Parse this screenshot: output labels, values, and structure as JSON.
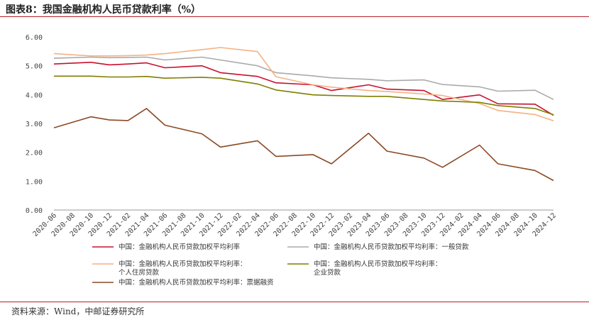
{
  "header": {
    "title": "图表8：我国金融机构人民币贷款利率（%）"
  },
  "footer": {
    "source": "资料来源：Wind，中邮证券研究所"
  },
  "chart_data": {
    "type": "line",
    "title": "",
    "xlabel": "",
    "ylabel": "",
    "ylim": [
      0,
      6
    ],
    "yticks": [
      "0.00",
      "1.00",
      "2.00",
      "3.00",
      "4.00",
      "5.00",
      "6.00"
    ],
    "x": [
      "2020-06",
      "2020-08",
      "2020-10",
      "2020-12",
      "2021-02",
      "2021-04",
      "2021-06",
      "2021-08",
      "2021-10",
      "2021-12",
      "2022-02",
      "2022-04",
      "2022-06",
      "2022-08",
      "2022-10",
      "2022-12",
      "2023-02",
      "2023-04",
      "2023-06",
      "2023-08",
      "2023-10",
      "2023-12",
      "2024-02",
      "2024-04",
      "2024-06",
      "2024-08",
      "2024-10",
      "2024-12"
    ],
    "grid": false,
    "legend_position": "bottom",
    "series": [
      {
        "name": "中国：金融机构人民币贷款加权平均利率",
        "legend_lines": [
          "中国：金融机构人民币贷款加权平均利率"
        ],
        "color": "#c8102e",
        "points": [
          [
            0,
            5.06
          ],
          [
            2,
            5.12
          ],
          [
            3,
            5.03
          ],
          [
            4,
            5.06
          ],
          [
            5,
            5.1
          ],
          [
            6,
            4.93
          ],
          [
            8,
            5.0
          ],
          [
            9,
            4.76
          ],
          [
            11,
            4.63
          ],
          [
            12,
            4.41
          ],
          [
            14,
            4.34
          ],
          [
            15,
            4.14
          ],
          [
            17,
            4.34
          ],
          [
            18,
            4.19
          ],
          [
            20,
            4.14
          ],
          [
            21,
            3.83
          ],
          [
            23,
            3.99
          ],
          [
            24,
            3.68
          ],
          [
            26,
            3.67
          ],
          [
            27,
            3.28
          ]
        ]
      },
      {
        "name": "中国：金融机构人民币贷款加权平均利率：一般贷款",
        "legend_lines": [
          "中国：金融机构人民币贷款加权平均利率：一般贷款"
        ],
        "color": "#aaaaaa",
        "points": [
          [
            0,
            5.26
          ],
          [
            2,
            5.3
          ],
          [
            3,
            5.28
          ],
          [
            4,
            5.29
          ],
          [
            5,
            5.3
          ],
          [
            6,
            5.2
          ],
          [
            8,
            5.3
          ],
          [
            9,
            5.2
          ],
          [
            11,
            5.0
          ],
          [
            12,
            4.76
          ],
          [
            14,
            4.65
          ],
          [
            15,
            4.58
          ],
          [
            17,
            4.53
          ],
          [
            18,
            4.48
          ],
          [
            20,
            4.51
          ],
          [
            21,
            4.35
          ],
          [
            23,
            4.27
          ],
          [
            24,
            4.12
          ],
          [
            26,
            4.15
          ],
          [
            27,
            3.83
          ]
        ]
      },
      {
        "name": "中国：金融机构人民币贷款加权平均利率：个人住房贷款",
        "legend_lines": [
          "中国：金融机构人民币贷款加权平均利率：",
          "个人住房贷款"
        ],
        "color": "#f4b183",
        "points": [
          [
            0,
            5.42
          ],
          [
            2,
            5.34
          ],
          [
            3,
            5.34
          ],
          [
            4,
            5.35
          ],
          [
            5,
            5.37
          ],
          [
            6,
            5.42
          ],
          [
            8,
            5.56
          ],
          [
            9,
            5.63
          ],
          [
            11,
            5.49
          ],
          [
            12,
            4.62
          ],
          [
            14,
            4.34
          ],
          [
            15,
            4.26
          ],
          [
            17,
            4.14
          ],
          [
            18,
            4.11
          ],
          [
            20,
            4.02
          ],
          [
            21,
            3.97
          ],
          [
            23,
            3.69
          ],
          [
            24,
            3.45
          ],
          [
            26,
            3.31
          ],
          [
            27,
            3.09
          ]
        ]
      },
      {
        "name": "中国：金融机构人民币贷款加权平均利率：企业贷款",
        "legend_lines": [
          "中国：金融机构人民币贷款加权平均利率：",
          "企业贷款"
        ],
        "color": "#7f7f00",
        "points": [
          [
            0,
            4.64
          ],
          [
            2,
            4.64
          ],
          [
            3,
            4.61
          ],
          [
            4,
            4.61
          ],
          [
            5,
            4.63
          ],
          [
            6,
            4.57
          ],
          [
            8,
            4.6
          ],
          [
            9,
            4.57
          ],
          [
            11,
            4.37
          ],
          [
            12,
            4.16
          ],
          [
            14,
            3.99
          ],
          [
            15,
            3.97
          ],
          [
            17,
            3.94
          ],
          [
            18,
            3.94
          ],
          [
            20,
            3.83
          ],
          [
            21,
            3.78
          ],
          [
            23,
            3.73
          ],
          [
            24,
            3.62
          ],
          [
            26,
            3.52
          ],
          [
            27,
            3.3
          ]
        ]
      },
      {
        "name": "中国：金融机构人民币贷款加权平均利率：票据融资",
        "legend_lines": [
          "中国：金融机构人民币贷款加权平均利率：票据融资"
        ],
        "color": "#8b4a24",
        "points": [
          [
            0,
            2.85
          ],
          [
            2,
            3.23
          ],
          [
            3,
            3.12
          ],
          [
            4,
            3.1
          ],
          [
            5,
            3.52
          ],
          [
            6,
            2.94
          ],
          [
            8,
            2.64
          ],
          [
            9,
            2.18
          ],
          [
            11,
            2.4
          ],
          [
            12,
            1.86
          ],
          [
            14,
            1.92
          ],
          [
            15,
            1.6
          ],
          [
            17,
            2.66
          ],
          [
            18,
            2.04
          ],
          [
            20,
            1.8
          ],
          [
            21,
            1.48
          ],
          [
            23,
            2.25
          ],
          [
            24,
            1.6
          ],
          [
            26,
            1.37
          ],
          [
            27,
            1.02
          ]
        ]
      }
    ]
  }
}
